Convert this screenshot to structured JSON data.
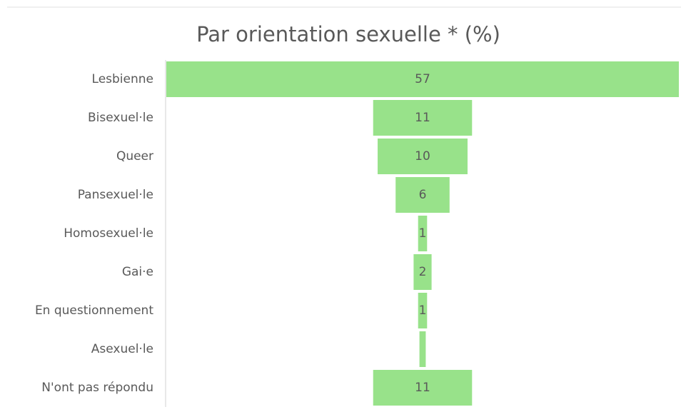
{
  "chart_data": {
    "type": "funnel",
    "title": "Par orientation sexuelle * (%)",
    "categories": [
      "Lesbienne",
      "Bisexuel·le",
      "Queer",
      "Pansexuel·le",
      "Homosexuel·le",
      "Gai·e",
      "En questionnement",
      "Asexuel·le",
      "N'ont pas répondu"
    ],
    "values": [
      57,
      11,
      10,
      6,
      1,
      2,
      1,
      0.7,
      11
    ],
    "value_labels": [
      "57",
      "11",
      "10",
      "6",
      "1",
      "2",
      "1",
      null,
      "11"
    ],
    "color": "#98e28a"
  }
}
